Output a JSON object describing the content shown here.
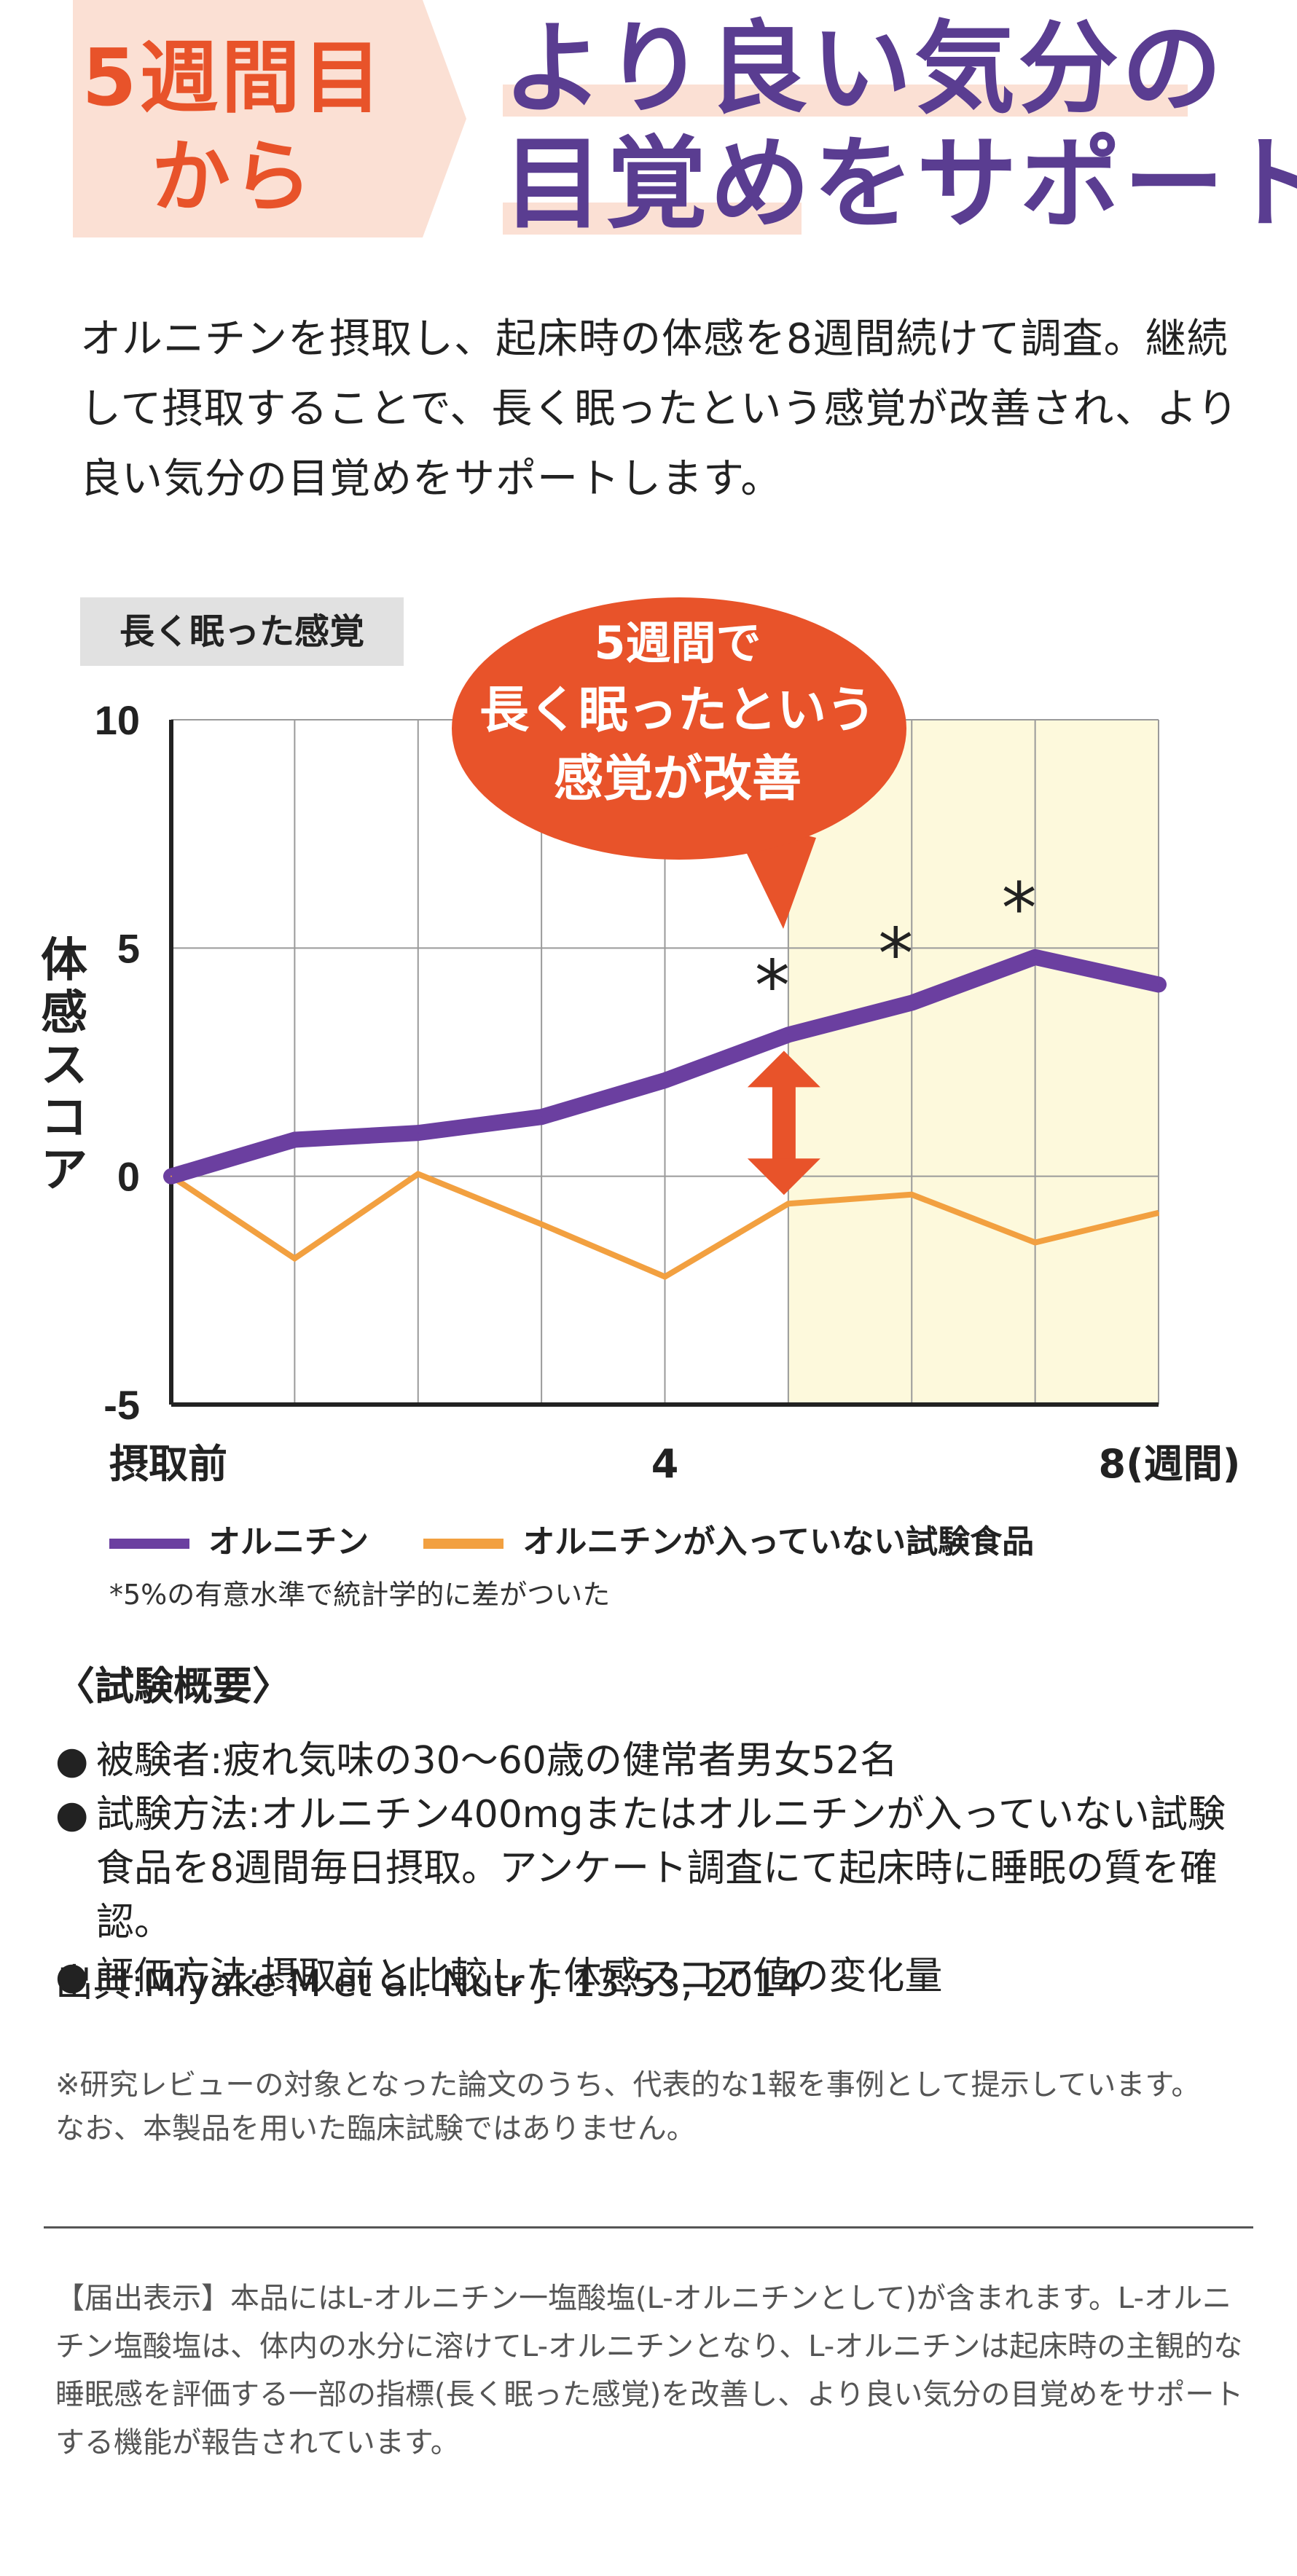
{
  "header": {
    "week_line1": "5週間目",
    "week_line2": "から",
    "title_line1": "より良い気分の",
    "title_line2": "目覚めをサポート"
  },
  "intro": "オルニチンを摂取し、起床時の体感を8週間続けて調査。継続して摂取することで、長く眠ったという感覚が改善され、より良い気分の目覚めをサポートします。",
  "callout": {
    "line1": "5週間で",
    "line2": "長く眠ったという",
    "line3": "感覚が改善"
  },
  "colors": {
    "accent_orange": "#e8532a",
    "purple": "#6b3fa0",
    "light_orange": "#f2a040",
    "highlight": "#fdf9dc",
    "pink_tint": "#fbe0d4"
  },
  "chart_data": {
    "type": "line",
    "title": "長く眠った感覚",
    "ylabel": "体感スコア",
    "xlabel": "(週間)",
    "ylim": [
      -5,
      10
    ],
    "yticks": [
      "10",
      "5",
      "0",
      "-5"
    ],
    "ytick_values": [
      10,
      5,
      0,
      -5
    ],
    "x": [
      0,
      1,
      2,
      3,
      4,
      5,
      6,
      7,
      8
    ],
    "xtick_labels": [
      "摂取前",
      "4",
      "8(週間)"
    ],
    "highlight_from_week": 5,
    "significant_weeks": [
      5,
      6,
      7
    ],
    "significance_marker": "*",
    "series": [
      {
        "name": "オルニチン",
        "color": "#6b3fa0",
        "values": [
          0,
          0.8,
          0.95,
          1.3,
          2.1,
          3.1,
          3.8,
          4.8,
          4.2
        ]
      },
      {
        "name": "オルニチンが入っていない試験食品",
        "color": "#f2a040",
        "values": [
          0,
          -1.8,
          0.05,
          -1.05,
          -2.2,
          -0.6,
          -0.4,
          -1.45,
          -0.8
        ]
      }
    ],
    "footnote": "*5%の有意水準で統計学的に差がついた"
  },
  "summary": {
    "title": "〈試験概要〉",
    "bullet": "●",
    "items": [
      "被験者:疲れ気味の30〜60歳の健常者男女52名",
      "試験方法:オルニチン400mgまたはオルニチンが入っていない試験食品を8週間毎日摂取。アンケート調査にて起床時に睡眠の質を確認。",
      "評価方法:摂取前と比較した体感スコア値の変化量"
    ],
    "source": "出典:Miyake M et al. Nutr J. 13:53, 2014"
  },
  "notes": {
    "line1": "※研究レビューの対象となった論文のうち、代表的な1報を事例として提示しています。",
    "line2": "なお、本製品を用いた臨床試験ではありません。"
  },
  "filing": "【届出表示】本品にはL-オルニチン一塩酸塩(L-オルニチンとして)が含まれます。L-オルニチン塩酸塩は、体内の水分に溶けてL-オルニチンとなり、L-オルニチンは起床時の主観的な睡眠感を評価する一部の指標(長く眠った感覚)を改善し、より良い気分の目覚めをサポートする機能が報告されています。"
}
